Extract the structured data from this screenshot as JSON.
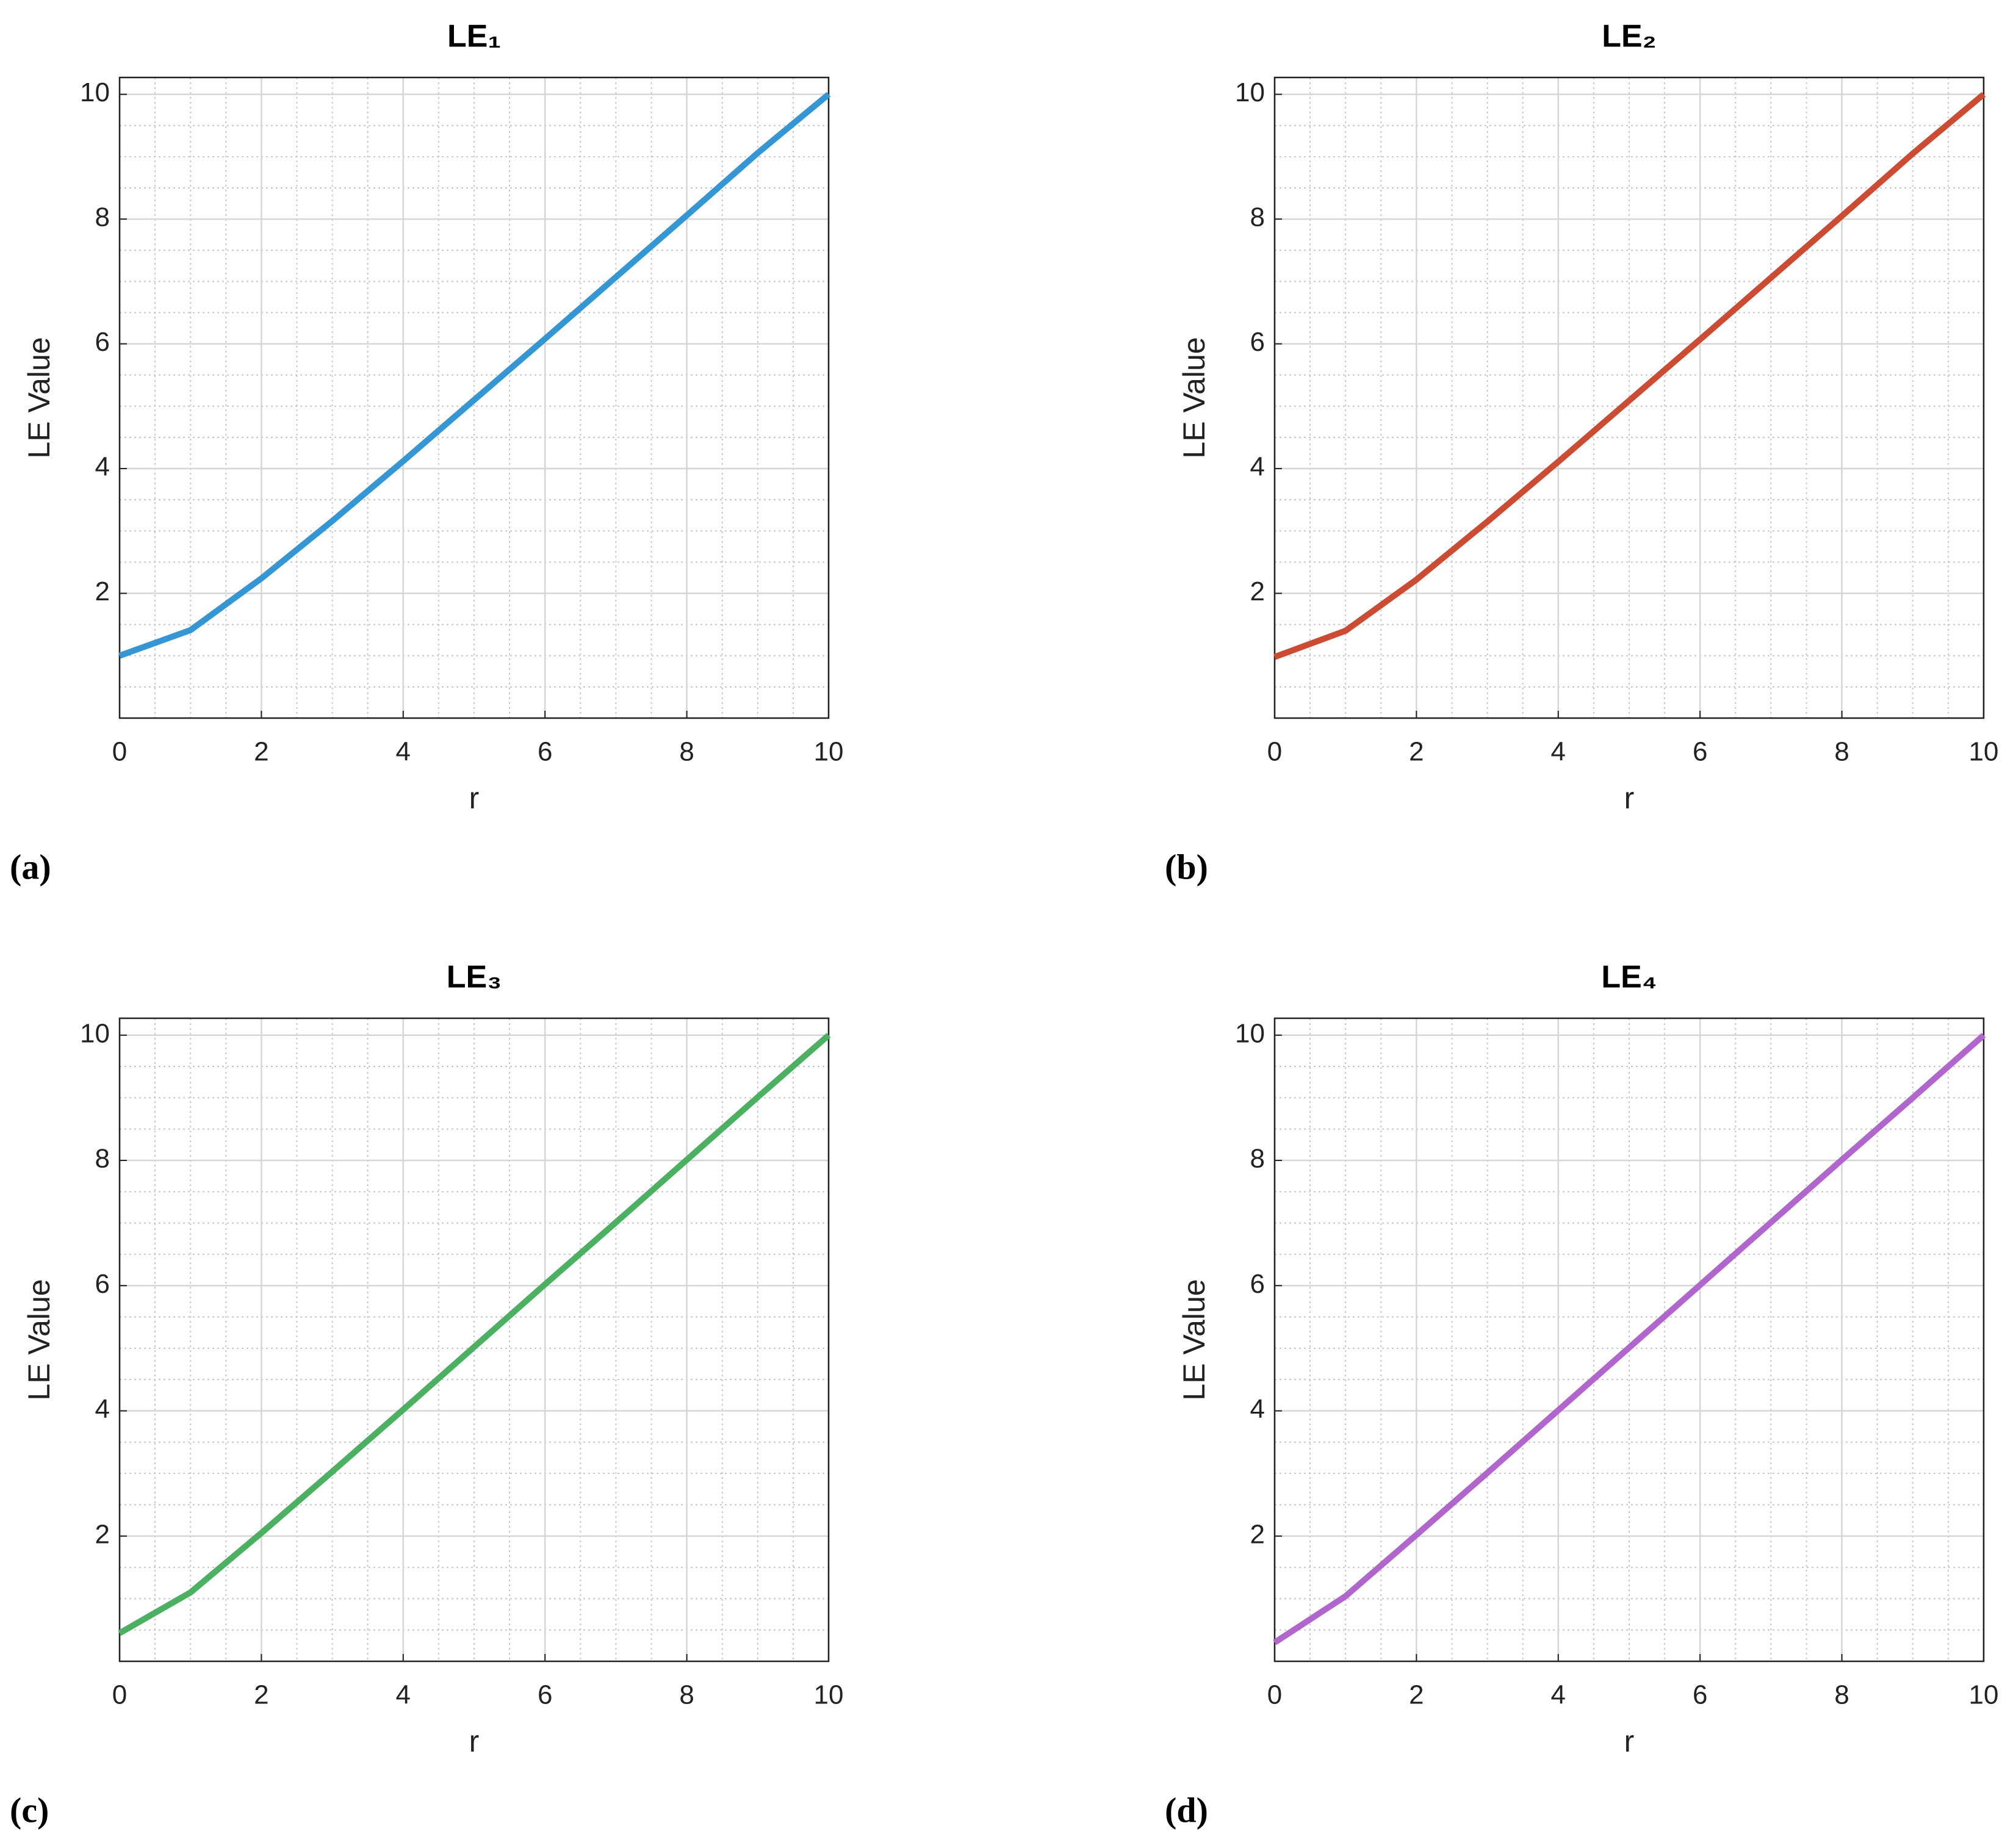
{
  "chart_data": [
    {
      "type": "line",
      "title": "LE₁",
      "panel_label": "(a)",
      "x_label": "r",
      "y_label": "LE Value",
      "x": [
        0,
        1,
        2,
        3,
        4,
        5,
        6,
        7,
        8,
        9,
        10
      ],
      "series": [
        {
          "color": "#3497d4",
          "values": [
            1.0,
            1.41,
            2.24,
            3.16,
            4.12,
            5.1,
            6.08,
            7.07,
            8.06,
            9.06,
            10.0
          ]
        }
      ],
      "xlim": [
        0,
        10
      ],
      "ylim": [
        0,
        10.27
      ],
      "xticks": [
        0,
        2,
        4,
        6,
        8,
        10
      ],
      "yticks": [
        2,
        4,
        6,
        8,
        10
      ],
      "grid": true,
      "minor_grid": true
    },
    {
      "type": "line",
      "title": "LE₂",
      "panel_label": "(b)",
      "x_label": "r",
      "y_label": "LE Value",
      "x": [
        0,
        1,
        2,
        3,
        4,
        5,
        6,
        7,
        8,
        9,
        10
      ],
      "series": [
        {
          "color": "#cc4c33",
          "values": [
            0.98,
            1.4,
            2.22,
            3.15,
            4.11,
            5.09,
            6.07,
            7.06,
            8.05,
            9.05,
            10.0
          ]
        }
      ],
      "xlim": [
        0,
        10
      ],
      "ylim": [
        0,
        10.27
      ],
      "xticks": [
        0,
        2,
        4,
        6,
        8,
        10
      ],
      "yticks": [
        2,
        4,
        6,
        8,
        10
      ],
      "grid": true,
      "minor_grid": true
    },
    {
      "type": "line",
      "title": "LE₃",
      "panel_label": "(c)",
      "x_label": "r",
      "y_label": "LE Value",
      "x": [
        0,
        1,
        2,
        3,
        4,
        5,
        6,
        7,
        8,
        9,
        10
      ],
      "series": [
        {
          "color": "#4cb062",
          "values": [
            0.45,
            1.1,
            2.05,
            3.03,
            4.02,
            5.02,
            6.02,
            7.01,
            8.01,
            9.01,
            10.0
          ]
        }
      ],
      "xlim": [
        0,
        10
      ],
      "ylim": [
        0,
        10.27
      ],
      "xticks": [
        0,
        2,
        4,
        6,
        8,
        10
      ],
      "yticks": [
        2,
        4,
        6,
        8,
        10
      ],
      "grid": true,
      "minor_grid": true
    },
    {
      "type": "line",
      "title": "LE₄",
      "panel_label": "(d)",
      "x_label": "r",
      "y_label": "LE Value",
      "x": [
        0,
        1,
        2,
        3,
        4,
        5,
        6,
        7,
        8,
        9,
        10
      ],
      "series": [
        {
          "color": "#b066cc",
          "values": [
            0.3,
            1.04,
            2.02,
            3.01,
            4.01,
            5.01,
            6.01,
            7.01,
            8.01,
            9.0,
            10.0
          ]
        }
      ],
      "xlim": [
        0,
        10
      ],
      "ylim": [
        0,
        10.27
      ],
      "xticks": [
        0,
        2,
        4,
        6,
        8,
        10
      ],
      "yticks": [
        2,
        4,
        6,
        8,
        10
      ],
      "grid": true,
      "minor_grid": true
    }
  ]
}
